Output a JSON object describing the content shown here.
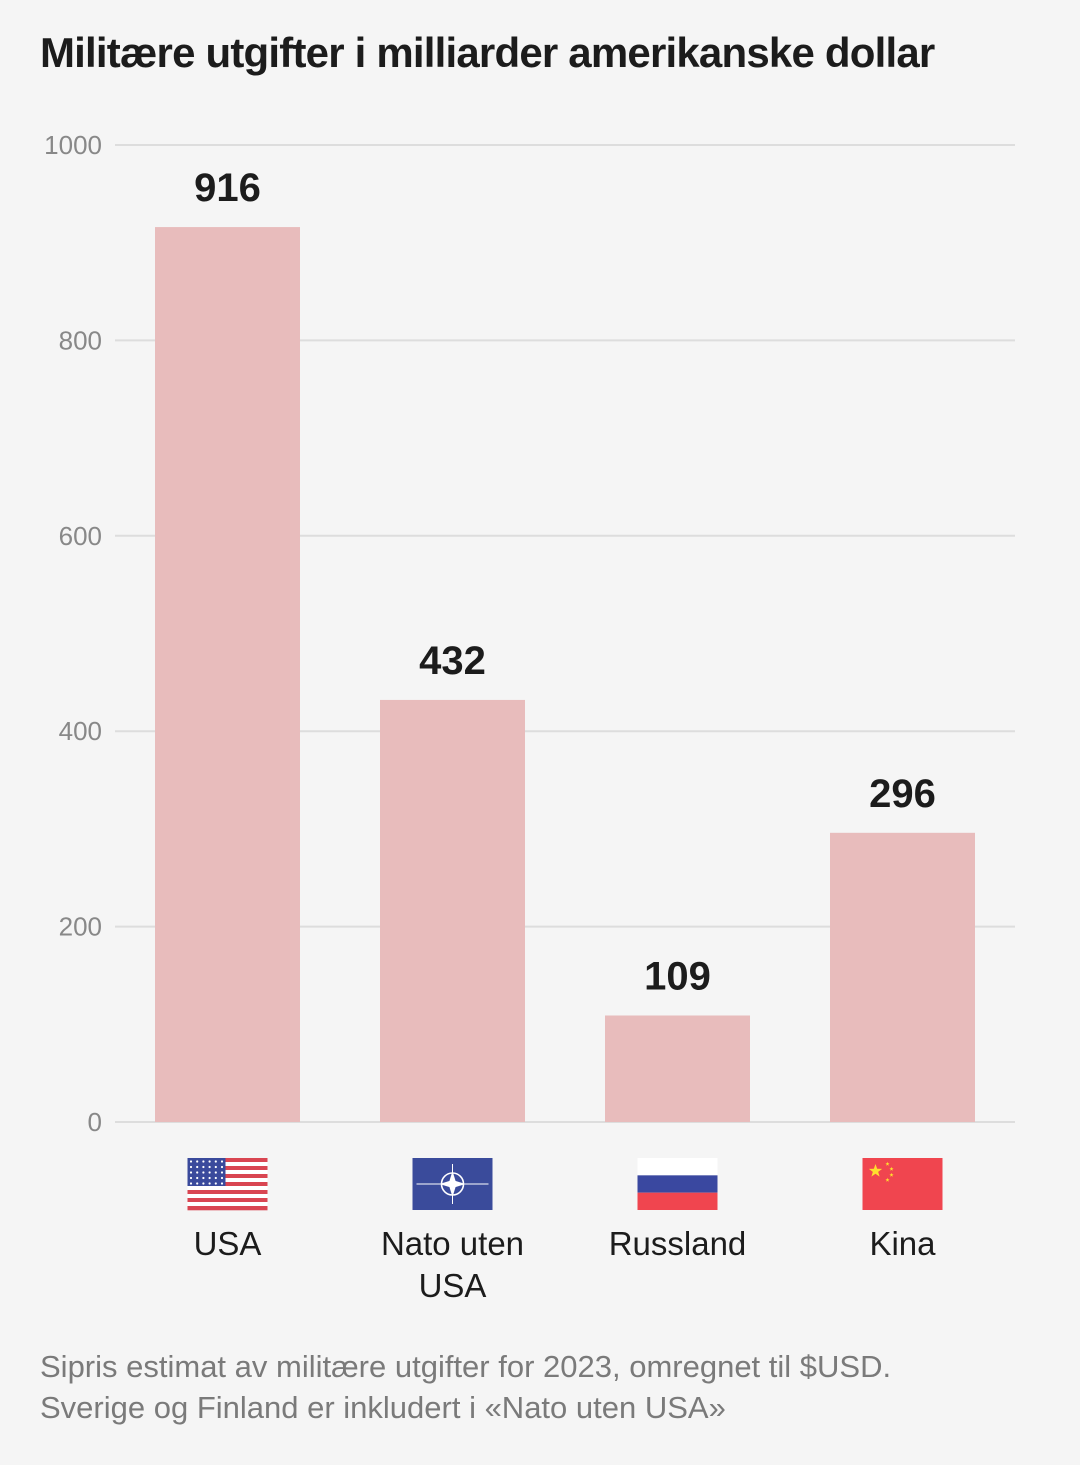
{
  "chart_data": {
    "type": "bar",
    "title": "Militære utgifter i milliarder amerikanske dollar",
    "categories": [
      {
        "label_lines": [
          "USA"
        ],
        "flag_icon": "usa-flag-icon"
      },
      {
        "label_lines": [
          "Nato uten",
          "USA"
        ],
        "flag_icon": "nato-flag-icon"
      },
      {
        "label_lines": [
          "Russland"
        ],
        "flag_icon": "russia-flag-icon"
      },
      {
        "label_lines": [
          "Kina"
        ],
        "flag_icon": "china-flag-icon"
      }
    ],
    "values": [
      916,
      432,
      109,
      296
    ],
    "value_labels": [
      "916",
      "432",
      "109",
      "296"
    ],
    "ylim": [
      0,
      1000
    ],
    "yticks": [
      0,
      200,
      400,
      600,
      800,
      1000
    ],
    "ytick_labels": [
      "0",
      "200",
      "400",
      "600",
      "800",
      "1000"
    ],
    "grid": true,
    "legend": "none",
    "xlabel": "",
    "ylabel": "",
    "bar_color": "#e8bcbc",
    "grid_color": "#dddddd"
  },
  "note_lines": [
    "Sipris estimat av militære utgifter for 2023, omregnet til $USD.",
    "Sverige og Finland er inkludert i «Nato uten USA»"
  ]
}
